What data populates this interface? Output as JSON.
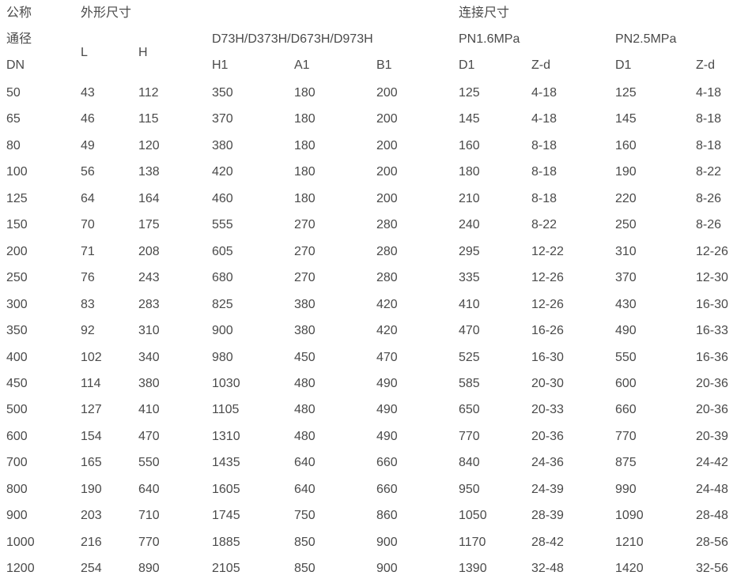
{
  "header": {
    "nominal_line1": "公称",
    "nominal_line2": "通径",
    "dn": "DN",
    "outer_dims": "外形尺寸",
    "L": "L",
    "H": "H",
    "model_group": "D73H/D373H/D673H/D973H",
    "H1": "H1",
    "A1": "A1",
    "B1": "B1",
    "connection_dims": "连接尺寸",
    "pn16": "PN1.6MPa",
    "pn25": "PN2.5MPa",
    "pn16_D1": "D1",
    "pn16_Zd": "Z-d",
    "pn25_D1": "D1",
    "pn25_Zd": "Z-d"
  },
  "rows": [
    [
      "50",
      "43",
      "112",
      "350",
      "180",
      "200",
      "125",
      "4-18",
      "125",
      "4-18"
    ],
    [
      "65",
      "46",
      "115",
      "370",
      "180",
      "200",
      "145",
      "4-18",
      "145",
      "8-18"
    ],
    [
      "80",
      "49",
      "120",
      "380",
      "180",
      "200",
      "160",
      "8-18",
      "160",
      "8-18"
    ],
    [
      "100",
      "56",
      "138",
      "420",
      "180",
      "200",
      "180",
      "8-18",
      "190",
      "8-22"
    ],
    [
      "125",
      "64",
      "164",
      "460",
      "180",
      "200",
      "210",
      "8-18",
      "220",
      "8-26"
    ],
    [
      "150",
      "70",
      "175",
      "555",
      "270",
      "280",
      "240",
      "8-22",
      "250",
      "8-26"
    ],
    [
      "200",
      "71",
      "208",
      "605",
      "270",
      "280",
      "295",
      "12-22",
      "310",
      "12-26"
    ],
    [
      "250",
      "76",
      "243",
      "680",
      "270",
      "280",
      "335",
      "12-26",
      "370",
      "12-30"
    ],
    [
      "300",
      "83",
      "283",
      "825",
      "380",
      "420",
      "410",
      "12-26",
      "430",
      "16-30"
    ],
    [
      "350",
      "92",
      "310",
      "900",
      "380",
      "420",
      "470",
      "16-26",
      "490",
      "16-33"
    ],
    [
      "400",
      "102",
      "340",
      "980",
      "450",
      "470",
      "525",
      "16-30",
      "550",
      "16-36"
    ],
    [
      "450",
      "114",
      "380",
      "1030",
      "480",
      "490",
      "585",
      "20-30",
      "600",
      "20-36"
    ],
    [
      "500",
      "127",
      "410",
      "1105",
      "480",
      "490",
      "650",
      "20-33",
      "660",
      "20-36"
    ],
    [
      "600",
      "154",
      "470",
      "1310",
      "480",
      "490",
      "770",
      "20-36",
      "770",
      "20-39"
    ],
    [
      "700",
      "165",
      "550",
      "1435",
      "640",
      "660",
      "840",
      "24-36",
      "875",
      "24-42"
    ],
    [
      "800",
      "190",
      "640",
      "1605",
      "640",
      "660",
      "950",
      "24-39",
      "990",
      "24-48"
    ],
    [
      "900",
      "203",
      "710",
      "1745",
      "750",
      "860",
      "1050",
      "28-39",
      "1090",
      "28-48"
    ],
    [
      "1000",
      "216",
      "770",
      "1885",
      "850",
      "900",
      "1170",
      "28-42",
      "1210",
      "28-56"
    ],
    [
      "1200",
      "254",
      "890",
      "2105",
      "850",
      "900",
      "1390",
      "32-48",
      "1420",
      "32-56"
    ]
  ]
}
